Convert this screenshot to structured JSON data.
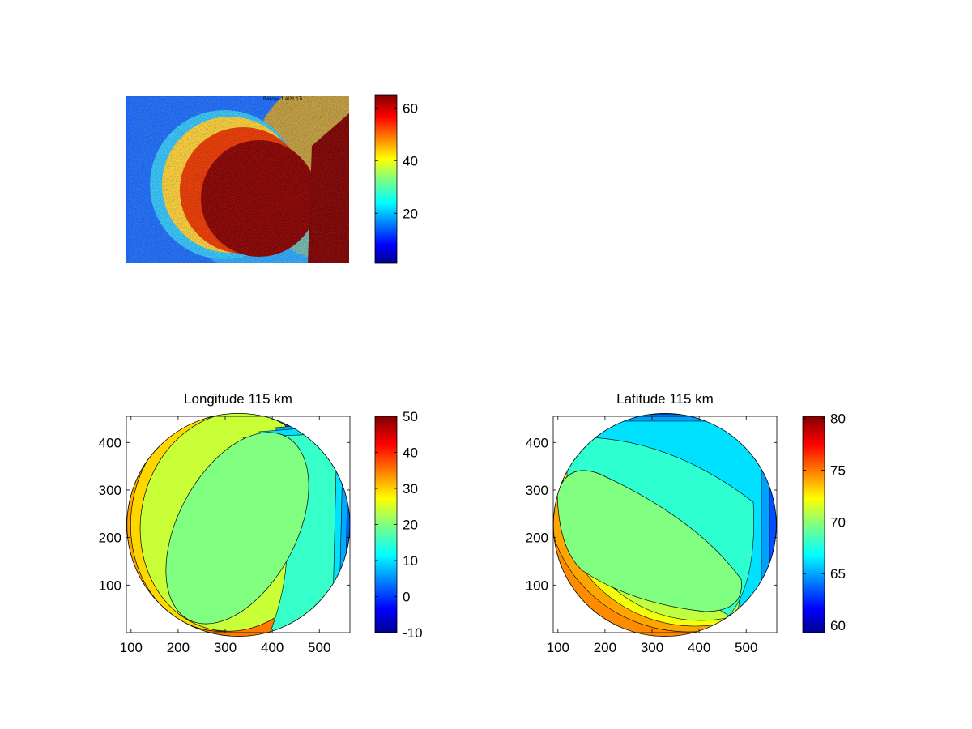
{
  "chart_data": [
    {
      "type": "heatmap",
      "title": "",
      "xlabel": "",
      "ylabel": "",
      "image_watermark": "Bakoaa 1 Ai21 17i",
      "colormap": "jet",
      "colorbar": {
        "range": [
          1,
          65
        ],
        "ticks": [
          20,
          40,
          60
        ]
      },
      "axes_visible": false
    },
    {
      "type": "heatmap",
      "title": "Longitude 115 km",
      "xlabel": "",
      "ylabel": "",
      "xlim": [
        90,
        565
      ],
      "ylim": [
        0,
        455
      ],
      "xticks": [
        100,
        200,
        300,
        400,
        500
      ],
      "yticks": [
        100,
        200,
        300,
        400
      ],
      "colormap": "jet",
      "colorbar": {
        "range": [
          -10,
          50
        ],
        "ticks": [
          -10,
          0,
          10,
          20,
          30,
          40,
          50
        ]
      },
      "disk": {
        "center": [
          327,
          228
        ],
        "radius": 233
      },
      "contour_bands": [
        {
          "value": 35,
          "color": "#ffa500"
        },
        {
          "value": 29,
          "color": "#ffd700"
        },
        {
          "value": 24,
          "color": "#c8ff37"
        },
        {
          "value": 19,
          "color": "#80ff80"
        },
        {
          "value": 13,
          "color": "#36ffc9"
        },
        {
          "value": 9,
          "color": "#00e0ff"
        },
        {
          "value": 5,
          "color": "#00aaff"
        },
        {
          "value": 1,
          "color": "#005fff"
        },
        {
          "value": -3,
          "color": "#0000e0"
        }
      ]
    },
    {
      "type": "heatmap",
      "title": "Latitude 115 km",
      "xlabel": "",
      "ylabel": "",
      "xlim": [
        90,
        565
      ],
      "ylim": [
        0,
        455
      ],
      "xticks": [
        100,
        200,
        300,
        400,
        500
      ],
      "yticks": [
        100,
        200,
        300,
        400
      ],
      "colormap": "jet",
      "colorbar": {
        "range": [
          59.3,
          80.2
        ],
        "ticks": [
          60,
          65,
          70,
          75,
          80
        ]
      },
      "disk": {
        "center": [
          327,
          228
        ],
        "radius": 233
      },
      "contour_bands": [
        {
          "value": 73,
          "color": "#ffa500"
        },
        {
          "value": 71,
          "color": "#f2ff0d"
        },
        {
          "value": 70.2,
          "color": "#bfff40"
        },
        {
          "value": 69.2,
          "color": "#80ff80"
        },
        {
          "value": 68,
          "color": "#2effd1"
        },
        {
          "value": 66.3,
          "color": "#00e0ff"
        },
        {
          "value": 64.8,
          "color": "#00a0ff"
        },
        {
          "value": 63.5,
          "color": "#0050ff"
        },
        {
          "value": 62,
          "color": "#0000c8"
        }
      ]
    }
  ]
}
